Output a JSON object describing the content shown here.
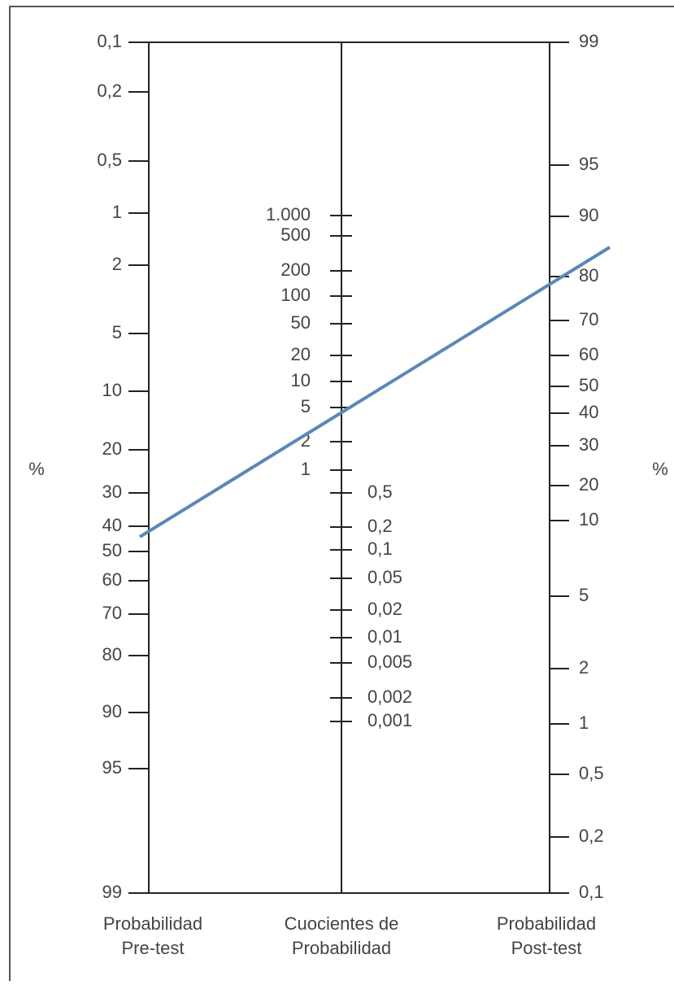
{
  "left_scale": {
    "unit": "%",
    "caption": [
      "Probabilidad",
      "Pre-test"
    ],
    "ticks": [
      "0,1",
      "0,2",
      "0,5",
      "1",
      "2",
      "5",
      "10",
      "20",
      "30",
      "40",
      "50",
      "60",
      "70",
      "80",
      "90",
      "95",
      "99"
    ]
  },
  "middle_scale": {
    "caption": [
      "Cuocientes de",
      "Probabilidad"
    ],
    "ticks_upper": [
      "1.000",
      "500",
      "200",
      "100",
      "50",
      "20",
      "10",
      "5",
      "2",
      "1"
    ],
    "ticks_lower": [
      "0,5",
      "0,2",
      "0,1",
      "0,05",
      "0,02",
      "0,01",
      "0,005",
      "0,002",
      "0,001"
    ]
  },
  "right_scale": {
    "unit": "%",
    "caption": [
      "Probabilidad",
      "Post-test"
    ],
    "ticks": [
      "99",
      "95",
      "90",
      "80",
      "70",
      "60",
      "50",
      "40",
      "30",
      "20",
      "10",
      "5",
      "2",
      "1",
      "0,5",
      "0,2",
      "0,1"
    ]
  }
}
